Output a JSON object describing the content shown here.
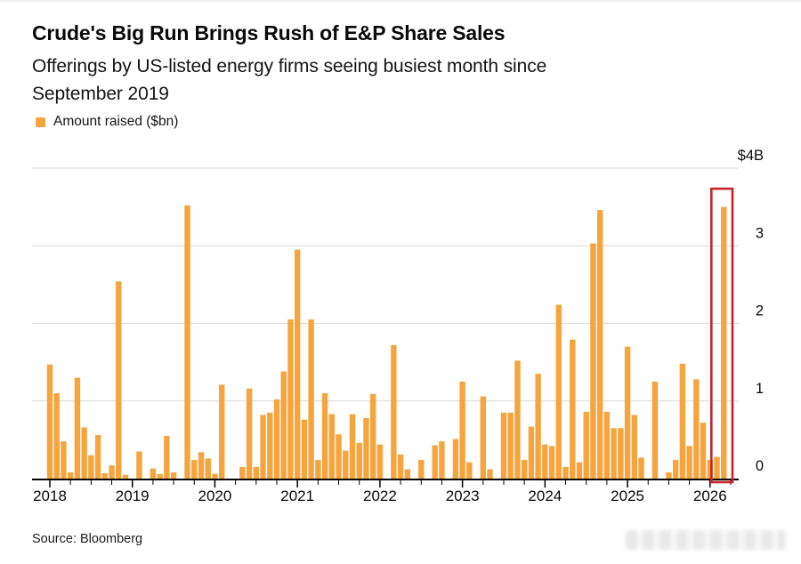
{
  "header": {
    "title": "Crude's Big Run Brings Rush of E&P Share Sales",
    "subtitle": "Offerings by US-listed energy firms seeing busiest month since\nSeptember 2019"
  },
  "legend": {
    "label": "Amount raised ($bn)",
    "swatch_color": "#F6A43D"
  },
  "source": {
    "text": "Source: Bloomberg"
  },
  "chart_data": {
    "type": "bar",
    "title": "Crude's Big Run Brings Rush of E&P Share Sales",
    "series_name": "Amount raised ($bn)",
    "unit": "$bn",
    "bar_color": "#F6A43D",
    "grid": true,
    "y_axis": {
      "side": "right",
      "min": 0,
      "max": 4,
      "tick_labels": [
        "$4B",
        "3",
        "2",
        "1",
        "0"
      ],
      "tick_values": [
        4,
        3,
        2,
        1,
        0
      ]
    },
    "x_axis": {
      "start_month": "2018-01",
      "end_month": "2026-03",
      "year_labels": [
        "2018",
        "2019",
        "2020",
        "2021",
        "2022",
        "2023",
        "2024",
        "2025",
        "2026"
      ],
      "minor_ticks": "quarterly"
    },
    "monthly_values": [
      1.47,
      1.1,
      0.48,
      0.08,
      1.3,
      0.66,
      0.3,
      0.56,
      0.07,
      0.17,
      2.54,
      0.05,
      0.0,
      0.35,
      0.0,
      0.13,
      0.06,
      0.55,
      0.08,
      0.0,
      3.52,
      0.24,
      0.34,
      0.26,
      0.06,
      1.21,
      0.0,
      0.0,
      0.15,
      1.16,
      0.15,
      0.82,
      0.85,
      1.02,
      1.38,
      2.05,
      2.95,
      0.76,
      2.05,
      0.24,
      1.1,
      0.83,
      0.57,
      0.36,
      0.83,
      0.46,
      0.78,
      1.09,
      0.44,
      0.0,
      1.72,
      0.31,
      0.12,
      0.0,
      0.24,
      0.0,
      0.43,
      0.48,
      0.0,
      0.51,
      1.25,
      0.21,
      0.0,
      1.06,
      0.12,
      0.0,
      0.85,
      0.85,
      1.52,
      0.24,
      0.67,
      1.35,
      0.44,
      0.42,
      2.24,
      0.15,
      1.79,
      0.21,
      0.86,
      3.03,
      3.46,
      0.86,
      0.65,
      0.65,
      1.7,
      0.82,
      0.27,
      0.0,
      1.25,
      0.0,
      0.08,
      0.24,
      1.48,
      0.42,
      1.28,
      0.72,
      0.24,
      0.28,
      3.5
    ],
    "highlight_box": {
      "months": [
        "2026-02",
        "2026-03"
      ],
      "start_index": 97,
      "end_index": 98,
      "color": "#C8232C"
    }
  }
}
